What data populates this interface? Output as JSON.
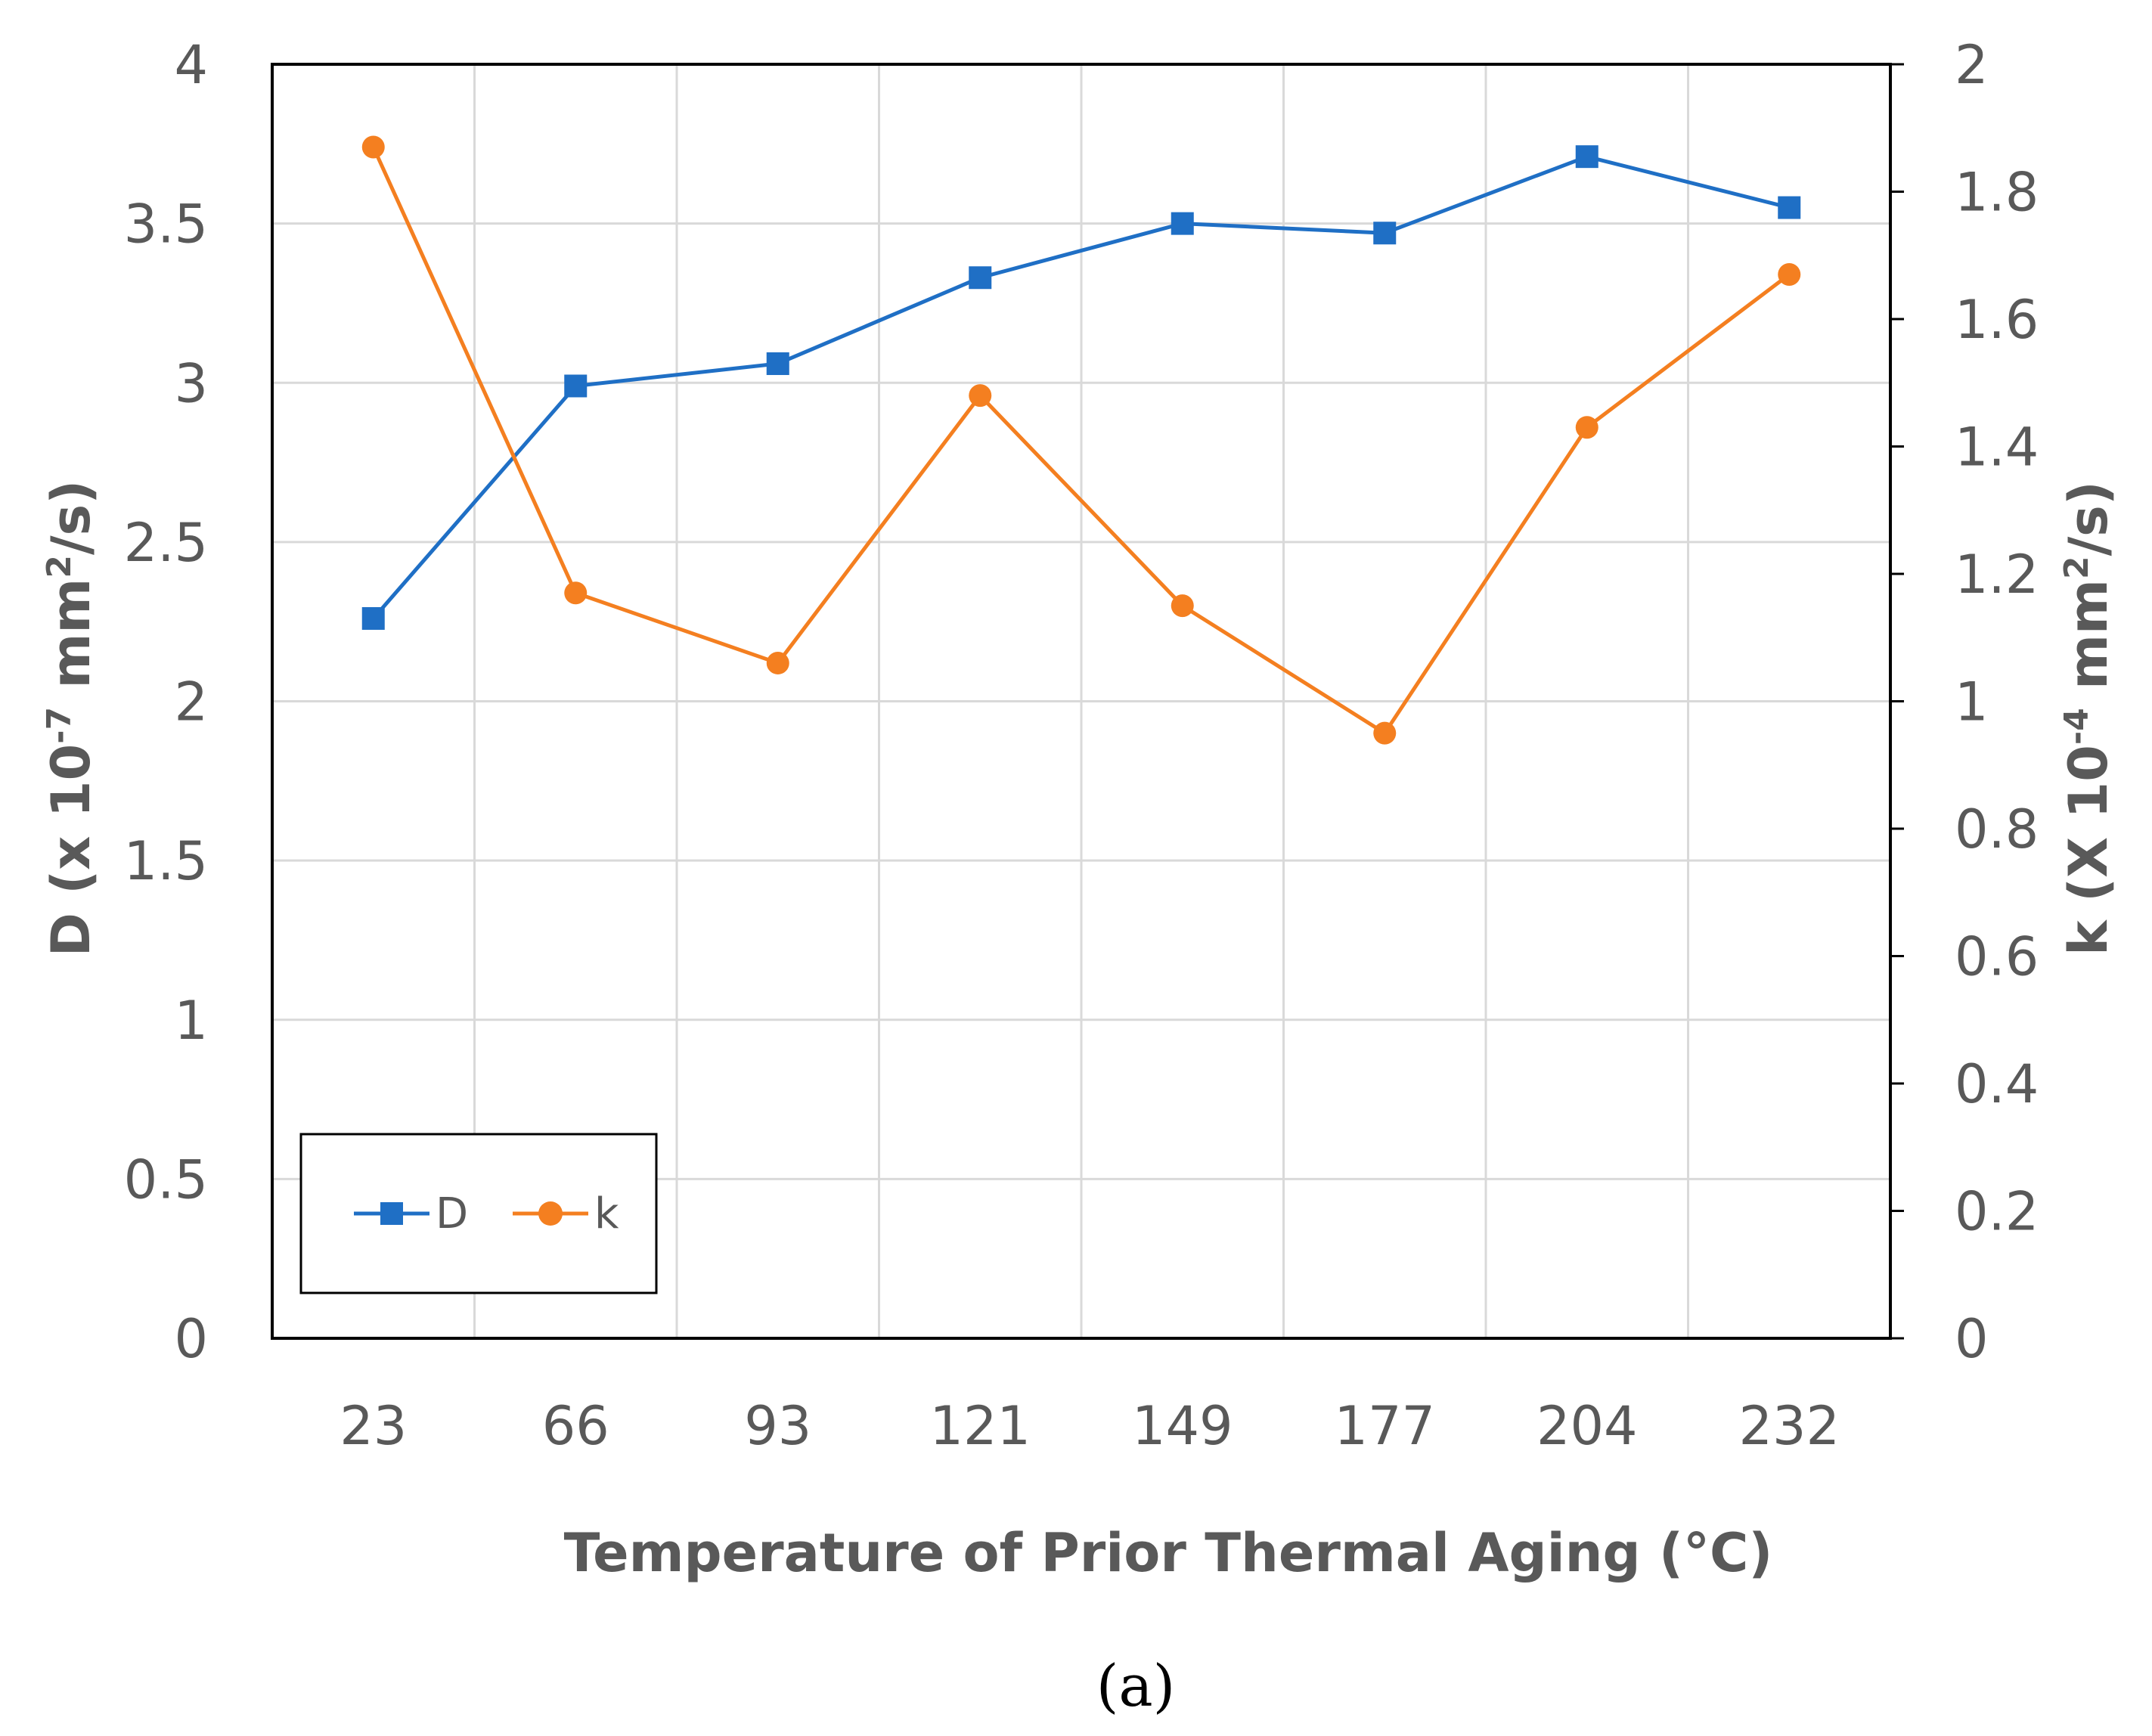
{
  "chart_data": {
    "type": "line",
    "xlabel": "Temperature of Prior Thermal Aging (°C)",
    "categories": [
      "23",
      "66",
      "93",
      "121",
      "149",
      "177",
      "204",
      "232"
    ],
    "y_left": {
      "label_main": "D (x 10",
      "label_exp1": "-7",
      "label_mid": " mm",
      "label_exp2": "2",
      "label_end": "/s)",
      "ylim": [
        0,
        4
      ],
      "ticks": [
        "0",
        "0.5",
        "1",
        "1.5",
        "2",
        "2.5",
        "3",
        "3.5",
        "4"
      ]
    },
    "y_right": {
      "label_main": "k (X 10",
      "label_exp1": "-4",
      "label_mid": " mm",
      "label_exp2": "2",
      "label_end": "/s)",
      "ylim": [
        0,
        2
      ],
      "ticks": [
        "0",
        "0.2",
        "0.4",
        "0.6",
        "0.8",
        "1",
        "1.2",
        "1.4",
        "1.6",
        "1.8",
        "2"
      ]
    },
    "series": [
      {
        "name": "D",
        "axis": "left",
        "marker": "square",
        "color": "#1f6fc5",
        "values": [
          2.26,
          2.99,
          3.06,
          3.33,
          3.5,
          3.47,
          3.71,
          3.55
        ]
      },
      {
        "name": "k",
        "axis": "right",
        "marker": "circle",
        "color": "#f47f20",
        "values": [
          1.87,
          1.17,
          1.06,
          1.48,
          1.15,
          0.95,
          1.43,
          1.67
        ]
      }
    ],
    "grid": true,
    "legend_position": "bottom-left"
  },
  "caption": "(a)"
}
